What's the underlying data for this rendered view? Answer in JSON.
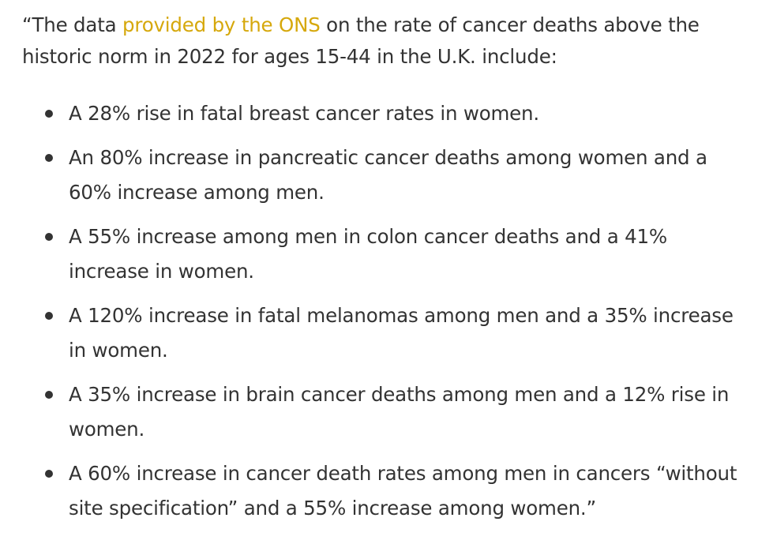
{
  "intro": {
    "before_link": "“The data ",
    "link_text": "provided by the ONS",
    "after_link": " on the rate of cancer deaths above the historic norm in 2022 for ages 15-44 in the U.K. include:"
  },
  "facts": [
    "A 28% rise in fatal breast cancer rates in women.",
    "An 80% increase in pancreatic cancer deaths among women and a 60% increase among men.",
    "A 55% increase among men in colon cancer deaths and a 41% increase in women.",
    "A 120% increase in fatal melanomas among men and a 35% increase in women.",
    "A 35% increase in brain cancer deaths among men and a 12% rise in women.",
    "A 60% increase in cancer death rates among men in cancers “without site specification” and a 55% increase among women.”"
  ],
  "colors": {
    "text": "#333333",
    "link": "#d6a80c"
  }
}
